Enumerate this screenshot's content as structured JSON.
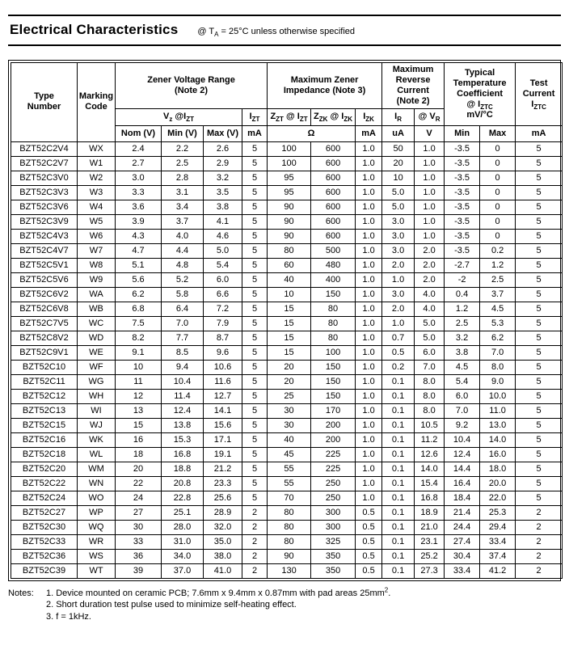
{
  "header": {
    "title": "Electrical Characteristics",
    "conditions": "@ T~A~ = 25°C unless otherwise specified"
  },
  "table": {
    "head": {
      "type_number": "Type\nNumber",
      "marking_code": "Marking\nCode",
      "zener_voltage_group": "Zener Voltage Range\n(Note 2)",
      "impedance_group": "Maximum Zener\nImpedance (Note 3)",
      "reverse_current_group": "Maximum\nReverse\nCurrent\n(Note 2)",
      "temp_coeff_group": "Typical\nTemperature\nCoefficient\n@ I~ZTC~\nmV/°C",
      "test_current_group": "Test\nCurrent\nI~ZTC~",
      "vz_izt": "V~z~ @I~ZT~",
      "izt": "I~ZT~",
      "zzt_izt": "Z~ZT~ @ I~ZT~",
      "zzk_izk": "Z~ZK~ @ I~ZK~",
      "izk": "I~ZK~",
      "ir": "I~R~",
      "vr": "@ V~R~"
    },
    "units": {
      "nom": "Nom (V)",
      "min": "Min (V)",
      "max": "Max (V)",
      "izt_ma": "mA",
      "ohm": "Ω",
      "izk_ma": "mA",
      "ir_ua": "uA",
      "vr_v": "V",
      "tc_min": "Min",
      "tc_max": "Max",
      "test_ma": "mA"
    },
    "rows": [
      [
        "BZT52C2V4",
        "WX",
        "2.4",
        "2.2",
        "2.6",
        "5",
        "100",
        "600",
        "1.0",
        "50",
        "1.0",
        "-3.5",
        "0",
        "5"
      ],
      [
        "BZT52C2V7",
        "W1",
        "2.7",
        "2.5",
        "2.9",
        "5",
        "100",
        "600",
        "1.0",
        "20",
        "1.0",
        "-3.5",
        "0",
        "5"
      ],
      [
        "BZT52C3V0",
        "W2",
        "3.0",
        "2.8",
        "3.2",
        "5",
        "95",
        "600",
        "1.0",
        "10",
        "1.0",
        "-3.5",
        "0",
        "5"
      ],
      [
        "BZT52C3V3",
        "W3",
        "3.3",
        "3.1",
        "3.5",
        "5",
        "95",
        "600",
        "1.0",
        "5.0",
        "1.0",
        "-3.5",
        "0",
        "5"
      ],
      [
        "BZT52C3V6",
        "W4",
        "3.6",
        "3.4",
        "3.8",
        "5",
        "90",
        "600",
        "1.0",
        "5.0",
        "1.0",
        "-3.5",
        "0",
        "5"
      ],
      [
        "BZT52C3V9",
        "W5",
        "3.9",
        "3.7",
        "4.1",
        "5",
        "90",
        "600",
        "1.0",
        "3.0",
        "1.0",
        "-3.5",
        "0",
        "5"
      ],
      [
        "BZT52C4V3",
        "W6",
        "4.3",
        "4.0",
        "4.6",
        "5",
        "90",
        "600",
        "1.0",
        "3.0",
        "1.0",
        "-3.5",
        "0",
        "5"
      ],
      [
        "BZT52C4V7",
        "W7",
        "4.7",
        "4.4",
        "5.0",
        "5",
        "80",
        "500",
        "1.0",
        "3.0",
        "2.0",
        "-3.5",
        "0.2",
        "5"
      ],
      [
        "BZT52C5V1",
        "W8",
        "5.1",
        "4.8",
        "5.4",
        "5",
        "60",
        "480",
        "1.0",
        "2.0",
        "2.0",
        "-2.7",
        "1.2",
        "5"
      ],
      [
        "BZT52C5V6",
        "W9",
        "5.6",
        "5.2",
        "6.0",
        "5",
        "40",
        "400",
        "1.0",
        "1.0",
        "2.0",
        "-2",
        "2.5",
        "5"
      ],
      [
        "BZT52C6V2",
        "WA",
        "6.2",
        "5.8",
        "6.6",
        "5",
        "10",
        "150",
        "1.0",
        "3.0",
        "4.0",
        "0.4",
        "3.7",
        "5"
      ],
      [
        "BZT52C6V8",
        "WB",
        "6.8",
        "6.4",
        "7.2",
        "5",
        "15",
        "80",
        "1.0",
        "2.0",
        "4.0",
        "1.2",
        "4.5",
        "5"
      ],
      [
        "BZT52C7V5",
        "WC",
        "7.5",
        "7.0",
        "7.9",
        "5",
        "15",
        "80",
        "1.0",
        "1.0",
        "5.0",
        "2.5",
        "5.3",
        "5"
      ],
      [
        "BZT52C8V2",
        "WD",
        "8.2",
        "7.7",
        "8.7",
        "5",
        "15",
        "80",
        "1.0",
        "0.7",
        "5.0",
        "3.2",
        "6.2",
        "5"
      ],
      [
        "BZT52C9V1",
        "WE",
        "9.1",
        "8.5",
        "9.6",
        "5",
        "15",
        "100",
        "1.0",
        "0.5",
        "6.0",
        "3.8",
        "7.0",
        "5"
      ],
      [
        "BZT52C10",
        "WF",
        "10",
        "9.4",
        "10.6",
        "5",
        "20",
        "150",
        "1.0",
        "0.2",
        "7.0",
        "4.5",
        "8.0",
        "5"
      ],
      [
        "BZT52C11",
        "WG",
        "11",
        "10.4",
        "11.6",
        "5",
        "20",
        "150",
        "1.0",
        "0.1",
        "8.0",
        "5.4",
        "9.0",
        "5"
      ],
      [
        "BZT52C12",
        "WH",
        "12",
        "11.4",
        "12.7",
        "5",
        "25",
        "150",
        "1.0",
        "0.1",
        "8.0",
        "6.0",
        "10.0",
        "5"
      ],
      [
        "BZT52C13",
        "WI",
        "13",
        "12.4",
        "14.1",
        "5",
        "30",
        "170",
        "1.0",
        "0.1",
        "8.0",
        "7.0",
        "11.0",
        "5"
      ],
      [
        "BZT52C15",
        "WJ",
        "15",
        "13.8",
        "15.6",
        "5",
        "30",
        "200",
        "1.0",
        "0.1",
        "10.5",
        "9.2",
        "13.0",
        "5"
      ],
      [
        "BZT52C16",
        "WK",
        "16",
        "15.3",
        "17.1",
        "5",
        "40",
        "200",
        "1.0",
        "0.1",
        "11.2",
        "10.4",
        "14.0",
        "5"
      ],
      [
        "BZT52C18",
        "WL",
        "18",
        "16.8",
        "19.1",
        "5",
        "45",
        "225",
        "1.0",
        "0.1",
        "12.6",
        "12.4",
        "16.0",
        "5"
      ],
      [
        "BZT52C20",
        "WM",
        "20",
        "18.8",
        "21.2",
        "5",
        "55",
        "225",
        "1.0",
        "0.1",
        "14.0",
        "14.4",
        "18.0",
        "5"
      ],
      [
        "BZT52C22",
        "WN",
        "22",
        "20.8",
        "23.3",
        "5",
        "55",
        "250",
        "1.0",
        "0.1",
        "15.4",
        "16.4",
        "20.0",
        "5"
      ],
      [
        "BZT52C24",
        "WO",
        "24",
        "22.8",
        "25.6",
        "5",
        "70",
        "250",
        "1.0",
        "0.1",
        "16.8",
        "18.4",
        "22.0",
        "5"
      ],
      [
        "BZT52C27",
        "WP",
        "27",
        "25.1",
        "28.9",
        "2",
        "80",
        "300",
        "0.5",
        "0.1",
        "18.9",
        "21.4",
        "25.3",
        "2"
      ],
      [
        "BZT52C30",
        "WQ",
        "30",
        "28.0",
        "32.0",
        "2",
        "80",
        "300",
        "0.5",
        "0.1",
        "21.0",
        "24.4",
        "29.4",
        "2"
      ],
      [
        "BZT52C33",
        "WR",
        "33",
        "31.0",
        "35.0",
        "2",
        "80",
        "325",
        "0.5",
        "0.1",
        "23.1",
        "27.4",
        "33.4",
        "2"
      ],
      [
        "BZT52C36",
        "WS",
        "36",
        "34.0",
        "38.0",
        "2",
        "90",
        "350",
        "0.5",
        "0.1",
        "25.2",
        "30.4",
        "37.4",
        "2"
      ],
      [
        "BZT52C39",
        "WT",
        "39",
        "37.0",
        "41.0",
        "2",
        "130",
        "350",
        "0.5",
        "0.1",
        "27.3",
        "33.4",
        "41.2",
        "2"
      ]
    ]
  },
  "notes": {
    "label": "Notes:",
    "items": [
      "1. Device mounted on ceramic PCB; 7.6mm x 9.4mm x 0.87mm with pad areas 25mm^2^.",
      "2. Short duration test pulse used to minimize self-heating effect.",
      "3. f = 1kHz."
    ]
  }
}
